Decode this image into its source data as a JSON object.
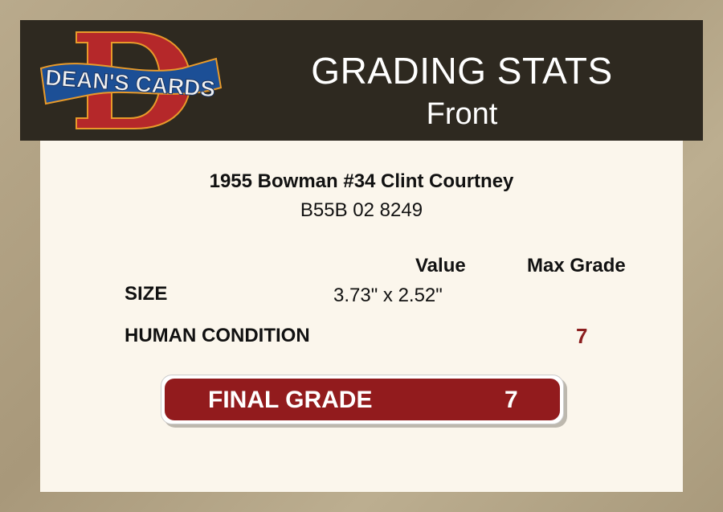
{
  "header": {
    "logo_text": "DEAN'S CARDS",
    "title": "GRADING STATS",
    "subtitle": "Front"
  },
  "card": {
    "name": "1955 Bowman #34 Clint Courtney",
    "cert": "B55B 02 8249"
  },
  "table": {
    "col_value": "Value",
    "col_max_grade": "Max Grade",
    "rows": [
      {
        "label": "SIZE",
        "value": "3.73\" x 2.52\"",
        "max_grade": ""
      },
      {
        "label": "HUMAN CONDITION",
        "value": "",
        "max_grade": "7"
      }
    ]
  },
  "final": {
    "label": "FINAL GRADE",
    "value": "7"
  },
  "colors": {
    "header_bg": "#2e2920",
    "panel_bg": "#fbf6ec",
    "accent_red": "#921b1d"
  }
}
